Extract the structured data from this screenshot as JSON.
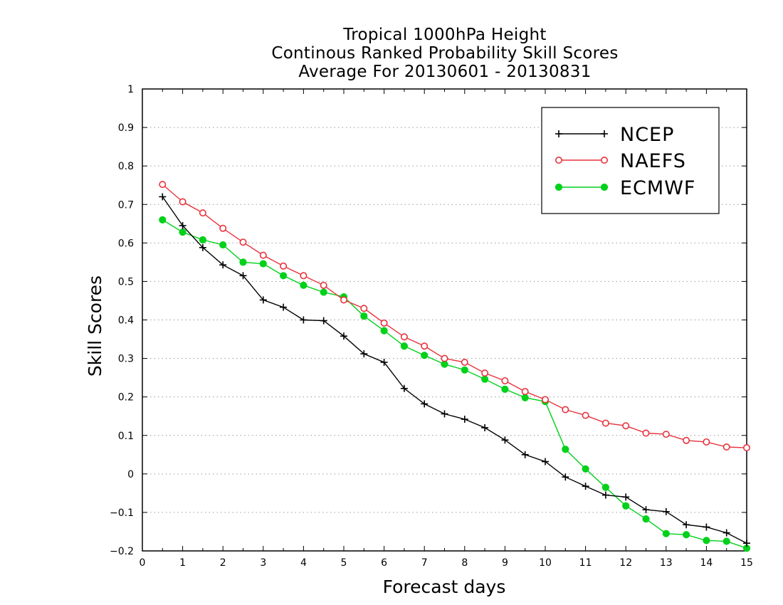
{
  "chart_data": {
    "type": "line",
    "title_lines": [
      "Tropical 1000hPa Height",
      "Continous Ranked Probability Skill Scores",
      "Average For 20130601 - 20130831"
    ],
    "xlabel": "Forecast days",
    "ylabel": "Skill Scores",
    "xlim": [
      0,
      15
    ],
    "ylim": [
      -0.2,
      1
    ],
    "x_ticks": [
      0,
      1,
      2,
      3,
      4,
      5,
      6,
      7,
      8,
      9,
      10,
      11,
      12,
      13,
      14,
      15
    ],
    "y_ticks": [
      -0.2,
      -0.1,
      0,
      0.1,
      0.2,
      0.3,
      0.4,
      0.5,
      0.6,
      0.7,
      0.8,
      0.9,
      1
    ],
    "y_tick_labels": [
      "−0.2",
      "−0.1",
      "0",
      "0.1",
      "0.2",
      "0.3",
      "0.4",
      "0.5",
      "0.6",
      "0.7",
      "0.8",
      "0.9",
      "1"
    ],
    "grid": "horizontal dotted",
    "legend_position": "top-right",
    "x": [
      0.5,
      1,
      1.5,
      2,
      2.5,
      3,
      3.5,
      4,
      4.5,
      5,
      5.5,
      6,
      6.5,
      7,
      7.5,
      8,
      8.5,
      9,
      9.5,
      10,
      10.5,
      11,
      11.5,
      12,
      12.5,
      13,
      13.5,
      14,
      14.5,
      15
    ],
    "series": [
      {
        "name": "NCEP",
        "color": "#000000",
        "marker": "plus",
        "values": [
          0.72,
          0.645,
          0.588,
          0.543,
          0.515,
          0.452,
          0.433,
          0.4,
          0.398,
          0.358,
          0.312,
          0.29,
          0.222,
          0.182,
          0.156,
          0.142,
          0.12,
          0.088,
          0.05,
          0.032,
          -0.008,
          -0.032,
          -0.055,
          -0.06,
          -0.093,
          -0.098,
          -0.132,
          -0.138,
          -0.153,
          -0.18
        ]
      },
      {
        "name": "NAEFS",
        "color": "#e8323c",
        "marker": "open-circle",
        "values": [
          0.752,
          0.707,
          0.678,
          0.638,
          0.602,
          0.568,
          0.54,
          0.515,
          0.49,
          0.452,
          0.43,
          0.392,
          0.356,
          0.332,
          0.3,
          0.29,
          0.262,
          0.242,
          0.214,
          0.193,
          0.167,
          0.152,
          0.132,
          0.125,
          0.106,
          0.103,
          0.087,
          0.083,
          0.07,
          0.068
        ]
      },
      {
        "name": "ECMWF",
        "color": "#00d11a",
        "marker": "filled-circle",
        "values": [
          0.66,
          0.628,
          0.608,
          0.595,
          0.55,
          0.546,
          0.515,
          0.49,
          0.472,
          0.46,
          0.41,
          0.372,
          0.332,
          0.308,
          0.285,
          0.27,
          0.246,
          0.22,
          0.198,
          0.188,
          0.064,
          0.013,
          -0.035,
          -0.083,
          -0.117,
          -0.155,
          -0.158,
          -0.173,
          -0.175,
          -0.193
        ]
      }
    ]
  }
}
